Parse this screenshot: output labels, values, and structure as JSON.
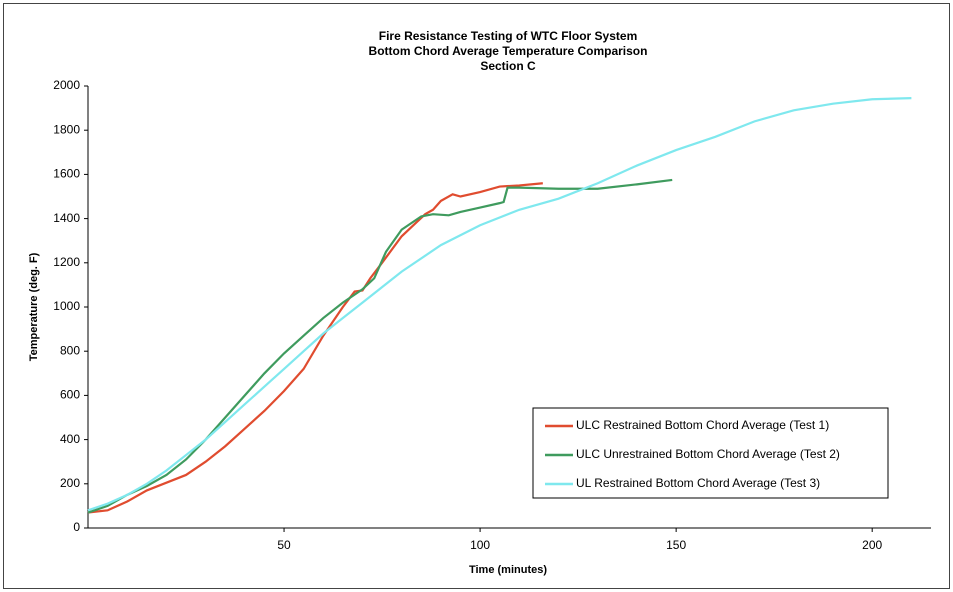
{
  "chart_data": {
    "type": "line",
    "title": [
      "Fire Resistance Testing of WTC Floor System",
      "Bottom Chord Average Temperature Comparison",
      "Section C"
    ],
    "xlabel": "Time (minutes)",
    "ylabel": "Temperature (deg. F)",
    "xlim": [
      0,
      215
    ],
    "xticks": [
      50,
      100,
      150,
      200
    ],
    "ylim": [
      0,
      2000
    ],
    "yticks": [
      0,
      200,
      400,
      600,
      800,
      1000,
      1200,
      1400,
      1600,
      1800,
      2000
    ],
    "grid": false,
    "legend": "lower right",
    "series": [
      {
        "name": "ULC Restrained Bottom Chord Average (Test 1)",
        "color": "#e04c2f",
        "x": [
          0,
          5,
          10,
          15,
          20,
          25,
          30,
          35,
          40,
          45,
          50,
          55,
          60,
          65,
          68,
          70,
          72,
          75,
          80,
          83,
          86,
          88,
          90,
          93,
          95,
          100,
          105,
          110,
          113,
          116
        ],
        "values": [
          70,
          80,
          120,
          170,
          205,
          240,
          300,
          370,
          450,
          530,
          620,
          720,
          870,
          1000,
          1070,
          1075,
          1130,
          1200,
          1320,
          1370,
          1420,
          1440,
          1480,
          1510,
          1500,
          1520,
          1545,
          1550,
          1555,
          1560
        ]
      },
      {
        "name": "ULC Unrestrained Bottom Chord Average (Test 2)",
        "color": "#3f9b5e",
        "x": [
          0,
          5,
          10,
          15,
          20,
          25,
          30,
          35,
          40,
          45,
          50,
          55,
          60,
          65,
          70,
          73,
          76,
          80,
          85,
          88,
          92,
          95,
          100,
          105,
          106,
          107,
          110,
          120,
          130,
          140,
          149
        ],
        "values": [
          70,
          100,
          150,
          190,
          240,
          310,
          400,
          500,
          600,
          700,
          790,
          870,
          950,
          1020,
          1080,
          1130,
          1250,
          1350,
          1410,
          1420,
          1415,
          1430,
          1450,
          1470,
          1475,
          1540,
          1540,
          1535,
          1535,
          1555,
          1575
        ]
      },
      {
        "name": "UL Restrained Bottom Chord Average (Test 3)",
        "color": "#7fe8ee",
        "x": [
          0,
          5,
          10,
          15,
          20,
          25,
          30,
          35,
          40,
          45,
          50,
          55,
          60,
          65,
          70,
          75,
          80,
          90,
          100,
          110,
          120,
          130,
          140,
          150,
          160,
          170,
          180,
          190,
          200,
          210
        ],
        "values": [
          80,
          110,
          150,
          200,
          260,
          330,
          400,
          480,
          560,
          640,
          720,
          800,
          880,
          950,
          1020,
          1090,
          1160,
          1280,
          1370,
          1440,
          1490,
          1560,
          1640,
          1710,
          1770,
          1840,
          1890,
          1920,
          1940,
          1945
        ]
      }
    ]
  }
}
